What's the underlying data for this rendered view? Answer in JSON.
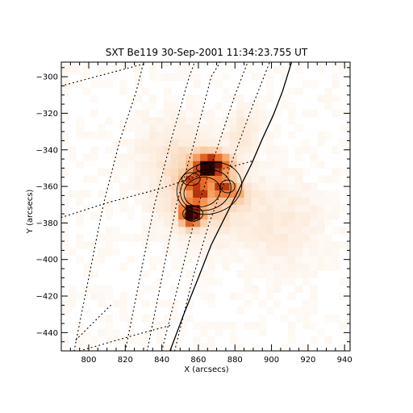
{
  "chart_data": {
    "type": "heatmap",
    "title": "SXT Be119 30-Sep-2001 11:34:23.755 UT",
    "xlabel": "X (arcsecs)",
    "ylabel": "Y (arcsecs)",
    "xlim": [
      785,
      943
    ],
    "ylim": [
      -450,
      -292
    ],
    "x_ticks": [
      800,
      820,
      840,
      860,
      880,
      900,
      920,
      940
    ],
    "y_ticks": [
      -300,
      -320,
      -340,
      -360,
      -380,
      -400,
      -420,
      -440
    ],
    "colormap": "white-orange-dark-red",
    "colors": {
      "low": "#ffffff",
      "mid": "#f08030",
      "high": "#3a0500",
      "contour": "#000000",
      "grid": "#000000"
    },
    "intensity_blobs": [
      {
        "x": 867,
        "y": -348,
        "sx": 6,
        "sy": 4,
        "amp": 0.9
      },
      {
        "x": 864,
        "y": -352,
        "sx": 3,
        "sy": 2.5,
        "amp": 0.6
      },
      {
        "x": 856,
        "y": -375,
        "sx": 3.5,
        "sy": 4,
        "amp": 1.0
      },
      {
        "x": 861,
        "y": -363,
        "sx": 3,
        "sy": 3,
        "amp": 0.55
      },
      {
        "x": 873,
        "y": -360,
        "sx": 3,
        "sy": 3,
        "amp": 0.55
      },
      {
        "x": 856,
        "y": -357,
        "sx": 3,
        "sy": 3,
        "amp": 0.45
      },
      {
        "x": 880,
        "y": -363,
        "sx": 4,
        "sy": 3,
        "amp": 0.25
      },
      {
        "x": 863,
        "y": -365,
        "sx": 16,
        "sy": 14,
        "amp": 0.25
      },
      {
        "x": 848,
        "y": -340,
        "sx": 15,
        "sy": 13,
        "amp": 0.1
      },
      {
        "x": 885,
        "y": -330,
        "sx": 6,
        "sy": 8,
        "amp": 0.12
      },
      {
        "x": 905,
        "y": -380,
        "sx": 15,
        "sy": 15,
        "amp": 0.1
      }
    ],
    "contours": [
      {
        "cx": 866,
        "cy": -361,
        "rx": 18,
        "ry": 14,
        "rot": 15
      },
      {
        "cx": 864,
        "cy": -362,
        "rx": 14,
        "ry": 11,
        "rot": 15
      },
      {
        "cx": 862,
        "cy": -363,
        "rx": 10,
        "ry": 8,
        "rot": 15
      },
      {
        "cx": 857,
        "cy": -375,
        "rx": 5.5,
        "ry": 4,
        "rot": 0
      },
      {
        "cx": 856,
        "cy": -376,
        "rx": 3.5,
        "ry": 2.5,
        "rot": 0
      },
      {
        "cx": 856,
        "cy": -356,
        "rx": 5,
        "ry": 3.5,
        "rot": 0
      },
      {
        "cx": 876,
        "cy": -360,
        "rx": 4,
        "ry": 3.5,
        "rot": 0
      },
      {
        "cx": 863,
        "cy": -350,
        "rx": 4,
        "ry": 2.5,
        "rot": 0
      }
    ],
    "limb": [
      [
        844.5,
        -450
      ],
      [
        852,
        -430
      ],
      [
        860,
        -410
      ],
      [
        867,
        -392
      ],
      [
        875,
        -376
      ],
      [
        882,
        -362
      ],
      [
        889,
        -348
      ],
      [
        895,
        -334
      ],
      [
        901,
        -321
      ],
      [
        906,
        -308
      ],
      [
        911,
        -292
      ]
    ],
    "grid_lines": [
      [
        [
          785,
          -305
        ],
        [
          830,
          -293
        ]
      ],
      [
        [
          785,
          -377
        ],
        [
          810,
          -369
        ],
        [
          840,
          -361
        ],
        [
          864,
          -353
        ],
        [
          890,
          -346
        ]
      ],
      [
        [
          792,
          -450
        ],
        [
          800,
          -410
        ],
        [
          808,
          -370
        ],
        [
          817,
          -335
        ],
        [
          826,
          -308
        ],
        [
          830,
          -292
        ]
      ],
      [
        [
          820,
          -450
        ],
        [
          828,
          -410
        ],
        [
          836,
          -370
        ],
        [
          845,
          -335
        ],
        [
          855,
          -300
        ],
        [
          858,
          -292
        ]
      ],
      [
        [
          832,
          -450
        ],
        [
          840,
          -410
        ],
        [
          848,
          -370
        ],
        [
          858,
          -335
        ],
        [
          867,
          -300
        ],
        [
          872,
          -292
        ]
      ],
      [
        [
          840,
          -450
        ],
        [
          850,
          -410
        ],
        [
          860,
          -370
        ],
        [
          870,
          -340
        ],
        [
          880,
          -310
        ],
        [
          887,
          -292
        ]
      ],
      [
        [
          847,
          -450
        ],
        [
          857,
          -410
        ],
        [
          866,
          -380
        ],
        [
          877,
          -350
        ],
        [
          890,
          -315
        ],
        [
          899,
          -292
        ]
      ],
      [
        [
          795,
          -450
        ],
        [
          830,
          -440
        ],
        [
          845,
          -436
        ]
      ],
      [
        [
          793,
          -444
        ],
        [
          812,
          -425
        ]
      ]
    ]
  }
}
